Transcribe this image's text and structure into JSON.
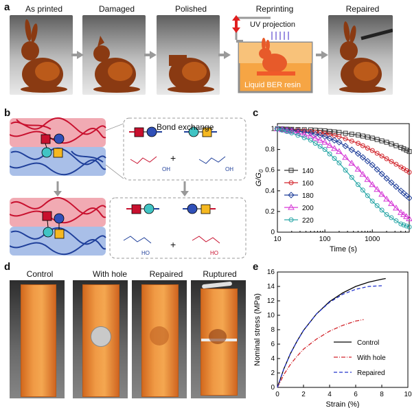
{
  "panel_a": {
    "label": "a",
    "photos": [
      "As printed",
      "Damaged",
      "Polished",
      "Reprinting",
      "Repaired"
    ],
    "uv_label": "UV projection",
    "resin_label": "Liquid BER resin"
  },
  "panel_b": {
    "label": "b",
    "bond_exchange": "Bond exchange",
    "oh_labels": [
      "OH",
      "OH",
      "HO",
      "HO"
    ],
    "plus": "+"
  },
  "panel_c": {
    "label": "c",
    "ylabel_g": "G/G",
    "ylabel_sub": "0",
    "xlabel": "Time (s)",
    "legend": [
      "140",
      "160",
      "180",
      "200",
      "220"
    ]
  },
  "panel_d": {
    "label": "d",
    "samples": [
      "Control",
      "With hole",
      "Repaired",
      "Ruptured"
    ]
  },
  "panel_e": {
    "label": "e",
    "ylabel": "Nominal stress (MPa)",
    "xlabel": "Strain (%)",
    "legend": [
      "Control",
      "With hole",
      "Repaired"
    ]
  },
  "colors": {
    "red_strand": "#c8102e",
    "blue_strand": "#1f3f9a",
    "red_bg": "#f1aab3",
    "blue_bg": "#a9bfe8",
    "square_red": "#c8102e",
    "square_yellow": "#f5b820",
    "circle_blue": "#3050b8",
    "circle_cyan": "#40c4c4",
    "orange": "#f08a30"
  },
  "chart_data": [
    {
      "type": "line",
      "title": "",
      "xlabel": "Time (s)",
      "ylabel": "G/G0",
      "xscale": "log",
      "xlim": [
        10,
        6000
      ],
      "ylim": [
        0,
        1.05
      ],
      "xticks": [
        "10",
        "100",
        "1000"
      ],
      "yticks": [
        "0",
        "0.2",
        "0.4",
        "0.6",
        "0.8",
        "1"
      ],
      "legend_title": "",
      "legend_position": "left-middle",
      "series": [
        {
          "name": "140",
          "color": "#333333",
          "marker": "square",
          "x": [
            10,
            20,
            50,
            100,
            200,
            500,
            1000,
            2000,
            4000,
            6000
          ],
          "y": [
            1.0,
            0.995,
            0.99,
            0.98,
            0.965,
            0.94,
            0.91,
            0.87,
            0.82,
            0.78
          ]
        },
        {
          "name": "160",
          "color": "#d2232a",
          "marker": "circle",
          "x": [
            10,
            20,
            50,
            100,
            200,
            500,
            1000,
            2000,
            4000,
            6000
          ],
          "y": [
            1.0,
            0.99,
            0.975,
            0.955,
            0.925,
            0.86,
            0.79,
            0.71,
            0.63,
            0.58
          ]
        },
        {
          "name": "180",
          "color": "#1f3f9a",
          "marker": "diamond",
          "x": [
            10,
            20,
            50,
            100,
            200,
            500,
            1000,
            2000,
            4000,
            6000
          ],
          "y": [
            1.0,
            0.985,
            0.96,
            0.925,
            0.87,
            0.76,
            0.65,
            0.52,
            0.4,
            0.33
          ]
        },
        {
          "name": "200",
          "color": "#d63ad6",
          "marker": "triangle",
          "x": [
            10,
            20,
            50,
            100,
            200,
            500,
            1000,
            2000,
            4000,
            6000
          ],
          "y": [
            1.0,
            0.975,
            0.93,
            0.87,
            0.78,
            0.61,
            0.46,
            0.32,
            0.19,
            0.13
          ]
        },
        {
          "name": "220",
          "color": "#2aa7a7",
          "marker": "circle",
          "x": [
            10,
            20,
            50,
            100,
            200,
            500,
            1000,
            2000,
            4000,
            6000
          ],
          "y": [
            1.0,
            0.96,
            0.89,
            0.8,
            0.67,
            0.46,
            0.3,
            0.17,
            0.08,
            0.05
          ]
        }
      ]
    },
    {
      "type": "line",
      "title": "",
      "xlabel": "Strain (%)",
      "ylabel": "Nominal stress (MPa)",
      "xlim": [
        0,
        10
      ],
      "ylim": [
        0,
        16
      ],
      "xticks": [
        "0",
        "2",
        "4",
        "6",
        "8",
        "10"
      ],
      "yticks": [
        "0",
        "2",
        "4",
        "6",
        "8",
        "10",
        "12",
        "14",
        "16"
      ],
      "legend_position": "bottom-right",
      "series": [
        {
          "name": "Control",
          "color": "#000000",
          "dash": "solid",
          "x": [
            0,
            0.5,
            1,
            1.5,
            2,
            3,
            4,
            5,
            6,
            7,
            8,
            8.3
          ],
          "y": [
            0,
            2.6,
            4.7,
            6.4,
            7.9,
            10.2,
            11.9,
            13.1,
            14.0,
            14.6,
            15.0,
            15.1
          ]
        },
        {
          "name": "With hole",
          "color": "#d2232a",
          "dash": "dashdot",
          "x": [
            0,
            0.5,
            1,
            1.5,
            2,
            3,
            4,
            5,
            6,
            6.6
          ],
          "y": [
            0,
            1.8,
            3.2,
            4.3,
            5.3,
            6.7,
            7.8,
            8.6,
            9.2,
            9.4
          ]
        },
        {
          "name": "Repaired",
          "color": "#2233cc",
          "dash": "dash",
          "x": [
            0,
            0.5,
            1,
            1.5,
            2,
            3,
            4,
            5,
            6,
            7,
            8
          ],
          "y": [
            0,
            2.6,
            4.7,
            6.4,
            7.9,
            10.2,
            11.8,
            12.9,
            13.6,
            14.0,
            14.1
          ]
        }
      ]
    }
  ]
}
